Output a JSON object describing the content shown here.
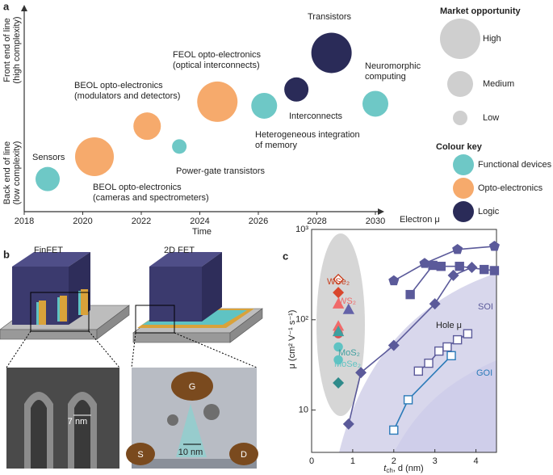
{
  "panel_labels": [
    "a",
    "b",
    "c"
  ],
  "diagram_b": {
    "titles": [
      "FinFET",
      "2D FET"
    ],
    "scales": [
      "7 nm",
      "10 nm"
    ],
    "electrodes": [
      "G",
      "S",
      "D"
    ]
  },
  "chart_data": [
    {
      "type": "bubble",
      "xlabel": "Time",
      "ylabel_low": [
        "Back end of line",
        "(low complexity)"
      ],
      "ylabel_high": [
        "Front end of line",
        "(high complexity)"
      ],
      "xlim": [
        2018,
        2030
      ],
      "xticks": [
        2018,
        2020,
        2022,
        2024,
        2026,
        2028,
        2030
      ],
      "ylim": [
        0,
        10
      ],
      "series": [
        {
          "name": "Functional devices",
          "color": "#6ec8c6",
          "x": [
            2018.8,
            2023.3,
            2026.2,
            2030.0
          ],
          "values": [
            1.6,
            3.2,
            5.2,
            5.3
          ],
          "sizes": [
            15,
            9,
            16,
            16
          ],
          "labels": [
            [
              "Sensors"
            ],
            [
              "Power-gate transistors"
            ],
            [
              "Heterogeneous integration",
              "of memory"
            ],
            [
              "Neuromorphic",
              "computing"
            ]
          ]
        },
        {
          "name": "Opto-electronics",
          "color": "#f6aa6c",
          "x": [
            2020.4,
            2022.2,
            2024.6
          ],
          "values": [
            2.7,
            4.2,
            5.4
          ],
          "sizes": [
            24,
            17,
            25
          ],
          "labels": [
            [
              "BEOL opto-electronics",
              "(cameras and spectrometers)"
            ],
            [
              "BEOL opto-electronics",
              "(modulators and detectors)"
            ],
            [
              "FEOL opto-electronics",
              "(optical interconnects)"
            ]
          ]
        },
        {
          "name": "Logic",
          "color": "#2a2b58",
          "x": [
            2027.3,
            2028.5
          ],
          "values": [
            6.0,
            7.8
          ],
          "sizes": [
            15,
            25
          ],
          "labels": [
            [
              "Interconnects"
            ],
            [
              "Transistors"
            ]
          ]
        }
      ],
      "size_legend": {
        "title": "Market opportunity",
        "names": [
          "High",
          "Medium",
          "Low"
        ],
        "sizes": [
          25,
          16,
          9
        ]
      },
      "color_legend_title": "Colour key"
    },
    {
      "type": "line",
      "xlabel": [
        "t",
        "ch",
        ", d (nm)"
      ],
      "ylabel": "μ (cm² V⁻¹ s⁻¹)",
      "log_y": true,
      "xlim": [
        0,
        4.5
      ],
      "xticks": [
        0,
        1,
        2,
        3,
        4
      ],
      "ylim": [
        3.4,
        1000
      ],
      "yticks": [
        10,
        {
          "value": 100,
          "label": "10²"
        },
        {
          "value": 1000,
          "label": "10³"
        }
      ],
      "series": [
        {
          "marker": "pentagon",
          "color": "#5b5a9a",
          "filled": true,
          "connect": true,
          "x": [
            2.0,
            2.75,
            3.55,
            4.45
          ],
          "values": [
            270,
            420,
            600,
            650
          ]
        },
        {
          "marker": "square",
          "color": "#5b5a9a",
          "filled": true,
          "connect": true,
          "x": [
            2.4,
            2.95,
            3.15,
            3.6,
            4.2,
            4.45
          ],
          "values": [
            190,
            400,
            390,
            390,
            360,
            350
          ]
        },
        {
          "marker": "diamond",
          "color": "#5b5a9a",
          "filled": true,
          "connect": true,
          "x": [
            0.9,
            1.2,
            2.0,
            3.0,
            3.45,
            3.9
          ],
          "values": [
            7,
            26,
            52,
            150,
            310,
            380
          ]
        },
        {
          "marker": "square",
          "color": "#5b5a9a",
          "filled": false,
          "connect": true,
          "x": [
            2.6,
            2.85,
            3.1,
            3.3,
            3.55,
            3.8
          ],
          "values": [
            27,
            33,
            45,
            50,
            60,
            70
          ]
        },
        {
          "marker": "square",
          "color": "#2a7ab8",
          "filled": false,
          "connect": true,
          "x": [
            2.0,
            2.35,
            3.4
          ],
          "values": [
            6,
            13,
            40
          ]
        },
        {
          "marker": "diamond",
          "color": "#c8401f",
          "filled": false,
          "connect": false,
          "x": [
            0.65
          ],
          "values": [
            280
          ]
        },
        {
          "marker": "diamond",
          "color": "#d9462c",
          "filled": true,
          "connect": false,
          "x": [
            0.65
          ],
          "values": [
            200
          ]
        },
        {
          "marker": "triangle",
          "color": "#f06a6a",
          "filled": true,
          "connect": false,
          "x": [
            0.65,
            0.65
          ],
          "values": [
            150,
            85
          ]
        },
        {
          "marker": "circle",
          "color": "#e05050",
          "filled": true,
          "connect": false,
          "x": [
            0.65
          ],
          "values": [
            70
          ]
        },
        {
          "marker": "triangle",
          "color": "#3f9f9f",
          "filled": true,
          "connect": false,
          "x": [
            0.65
          ],
          "values": [
            74
          ]
        },
        {
          "marker": "circle",
          "color": "#5fc3c3",
          "filled": true,
          "connect": false,
          "x": [
            0.65,
            0.65
          ],
          "values": [
            50,
            36
          ]
        },
        {
          "marker": "diamond",
          "color": "#2f8a8a",
          "filled": true,
          "connect": false,
          "x": [
            0.65
          ],
          "values": [
            20
          ]
        },
        {
          "marker": "triangle",
          "color": "#6462a8",
          "filled": true,
          "connect": false,
          "x": [
            0.9
          ],
          "values": [
            130
          ]
        }
      ],
      "annotations": [
        "Electron μ",
        "Hole μ",
        "SOI",
        "GOI",
        "WSe₂",
        "WS₂",
        "MoS₂",
        "MoSe₂"
      ]
    }
  ]
}
